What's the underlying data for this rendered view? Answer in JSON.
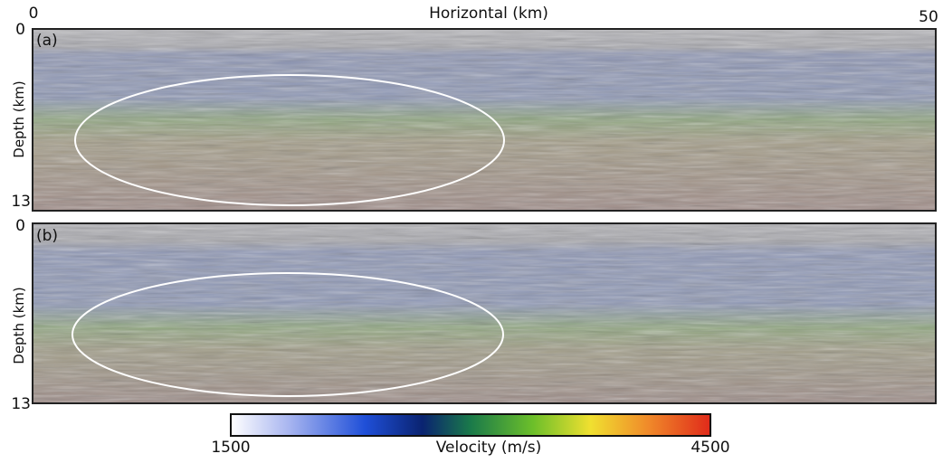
{
  "x_axis": {
    "label": "Horizontal (km)",
    "ticks": [
      "0",
      "50"
    ]
  },
  "panels": [
    {
      "label": "(a)",
      "y_axis": {
        "label": "Depth (km)",
        "ticks": [
          "0",
          "13"
        ]
      }
    },
    {
      "label": "(b)",
      "y_axis": {
        "label": "Depth (km)",
        "ticks": [
          "0",
          "13"
        ]
      }
    }
  ],
  "colorbar": {
    "label": "Velocity (m/s)",
    "min": "1500",
    "max": "4500"
  }
}
